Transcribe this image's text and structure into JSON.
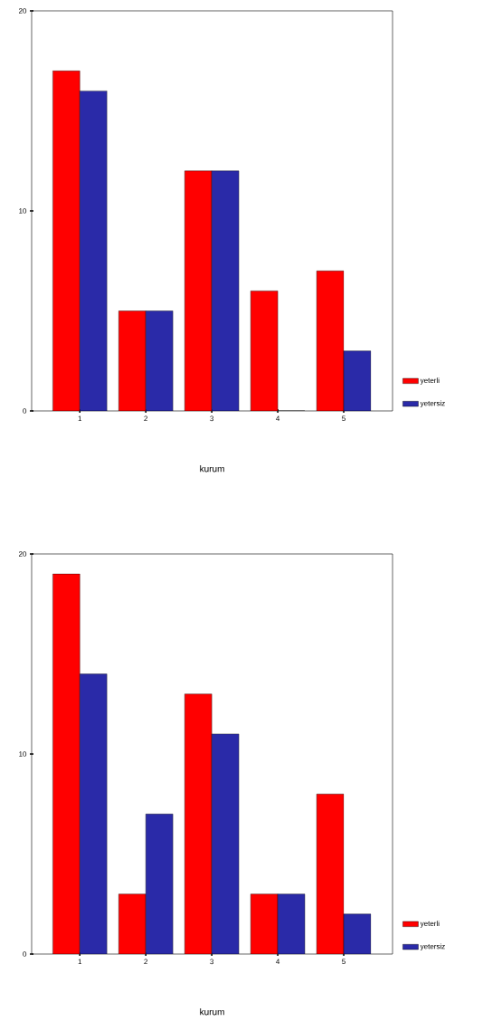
{
  "chart_data": [
    {
      "type": "bar",
      "categories": [
        "1",
        "2",
        "3",
        "4",
        "5"
      ],
      "xlabel": "kurum",
      "ylim": [
        0,
        20
      ],
      "yticks": [
        0,
        10,
        20
      ],
      "legend": "bottom right",
      "series": [
        {
          "name": "yeterli",
          "color": "#ff0000",
          "values": [
            17,
            5,
            12,
            6,
            7
          ]
        },
        {
          "name": "yetersiz",
          "color": "#2a2aa8",
          "values": [
            16,
            5,
            12,
            0,
            3
          ]
        }
      ]
    },
    {
      "type": "bar",
      "categories": [
        "1",
        "2",
        "3",
        "4",
        "5"
      ],
      "xlabel": "kurum",
      "ylim": [
        0,
        20
      ],
      "yticks": [
        0,
        10,
        20
      ],
      "legend": "bottom right",
      "series": [
        {
          "name": "yeterli",
          "color": "#ff0000",
          "values": [
            19,
            3,
            13,
            3,
            8
          ]
        },
        {
          "name": "yetersiz",
          "color": "#2a2aa8",
          "values": [
            14,
            7,
            11,
            3,
            2
          ]
        }
      ]
    }
  ]
}
